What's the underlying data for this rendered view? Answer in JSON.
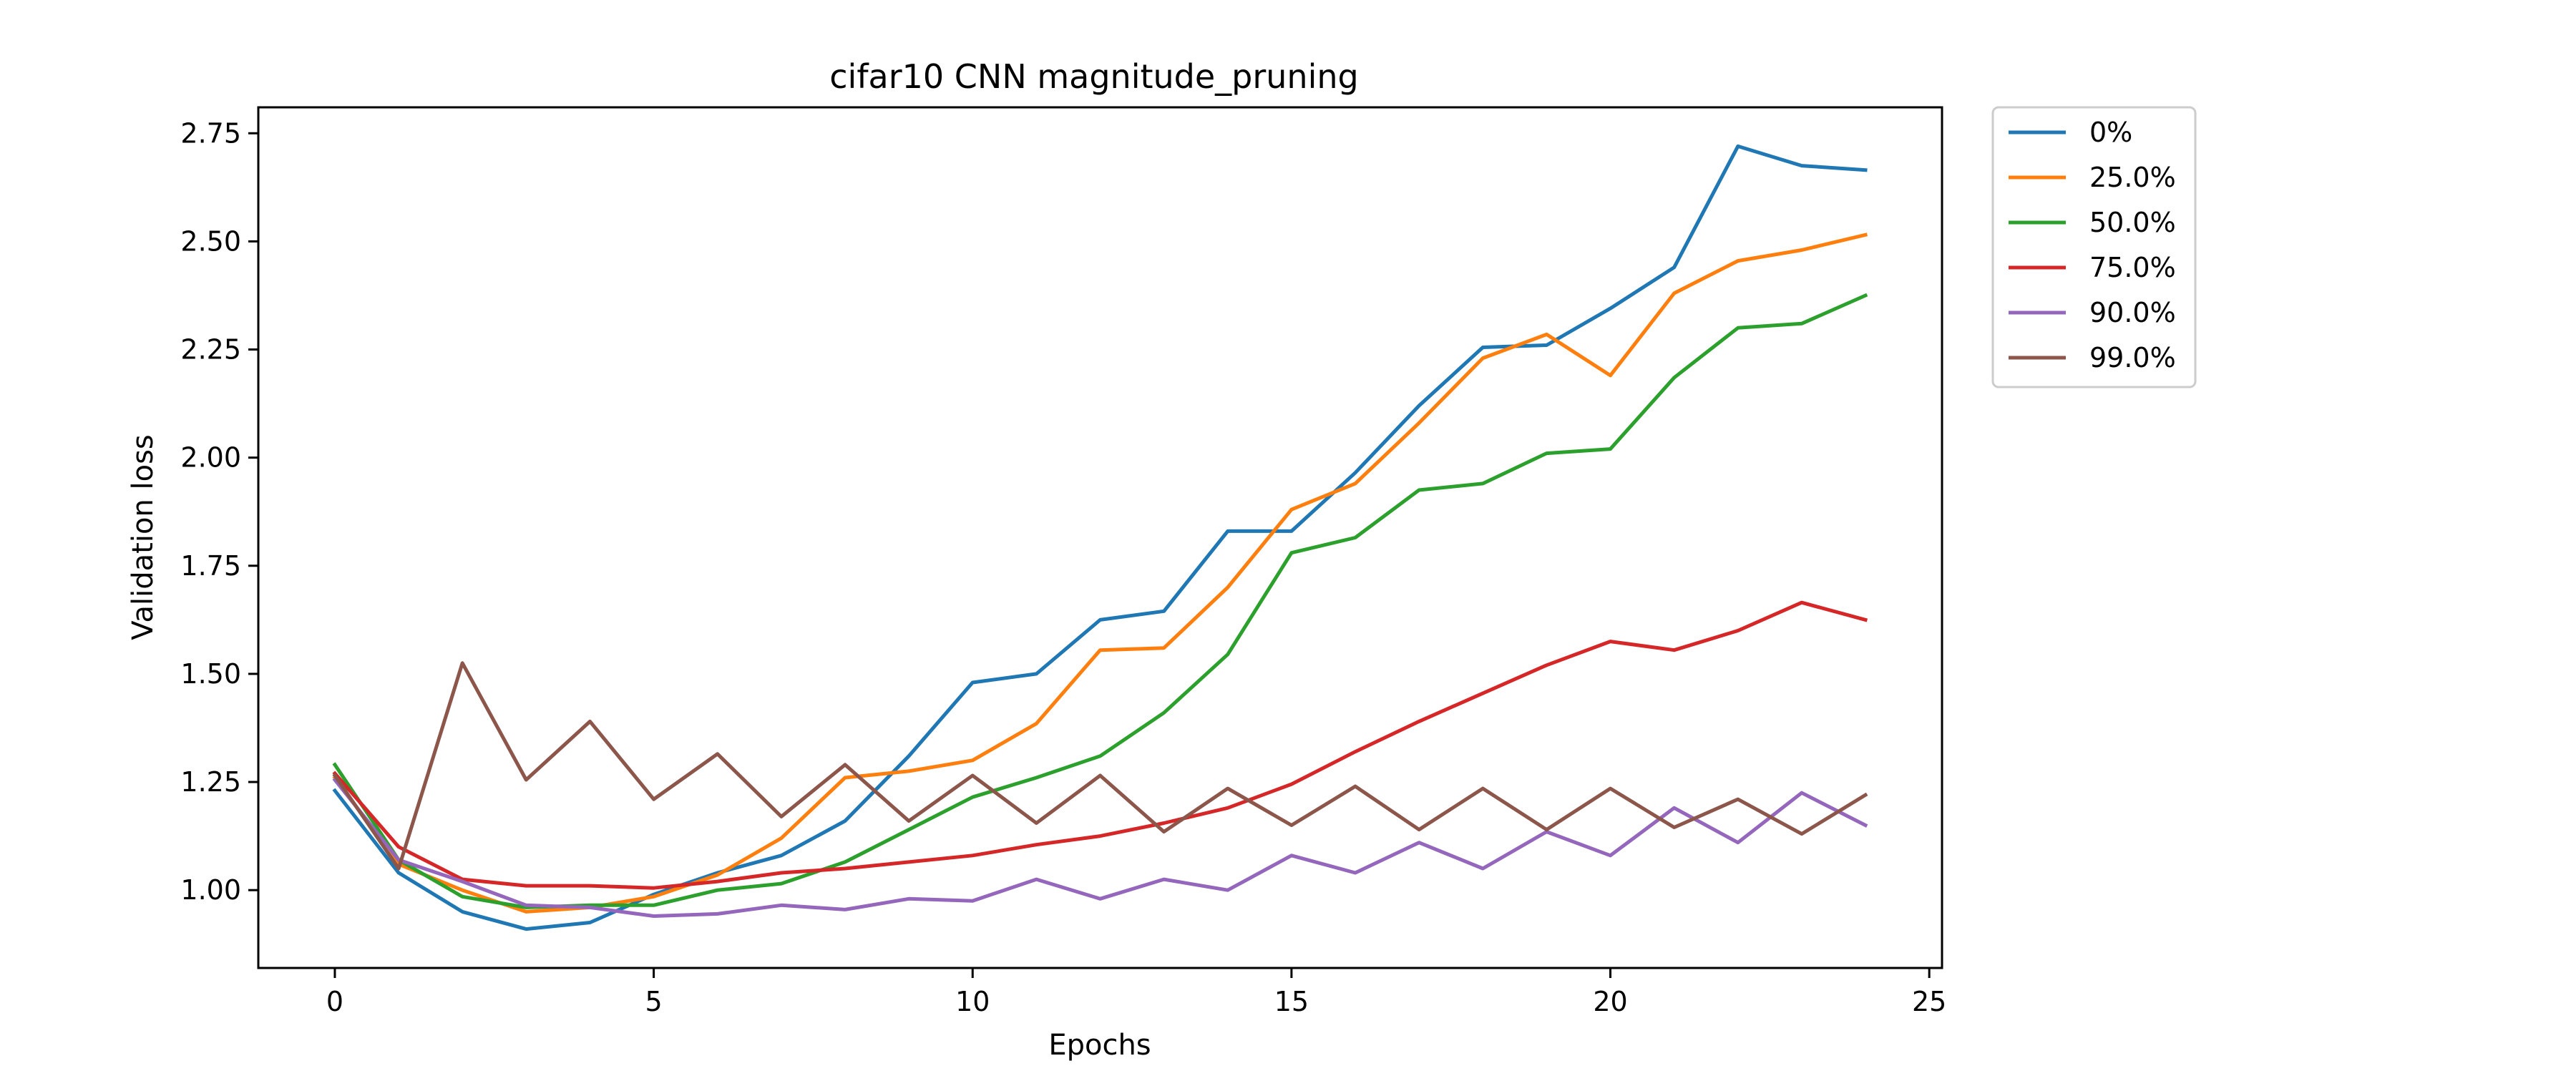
{
  "chart_data": {
    "type": "line",
    "title": "cifar10 CNN magnitude_pruning",
    "xlabel": "Epochs",
    "ylabel": "Validation loss",
    "xlim": [
      -1.2,
      25.2
    ],
    "ylim": [
      0.82,
      2.81
    ],
    "xticks": [
      0,
      5,
      10,
      15,
      20,
      25
    ],
    "xtick_labels": [
      "0",
      "5",
      "10",
      "15",
      "20",
      "25"
    ],
    "yticks": [
      1.0,
      1.25,
      1.5,
      1.75,
      2.0,
      2.25,
      2.5,
      2.75
    ],
    "ytick_labels": [
      "1.00",
      "1.25",
      "1.50",
      "1.75",
      "2.00",
      "2.25",
      "2.50",
      "2.75"
    ],
    "grid": false,
    "legend_position": "outside-top-right",
    "x": [
      0,
      1,
      2,
      3,
      4,
      5,
      6,
      7,
      8,
      9,
      10,
      11,
      12,
      13,
      14,
      15,
      16,
      17,
      18,
      19,
      20,
      21,
      22,
      23,
      24
    ],
    "series": [
      {
        "name": "0%",
        "color": "#1f77b4",
        "values": [
          1.23,
          1.04,
          0.95,
          0.91,
          0.925,
          0.99,
          1.04,
          1.08,
          1.16,
          1.31,
          1.48,
          1.5,
          1.625,
          1.645,
          1.83,
          1.83,
          1.965,
          2.12,
          2.255,
          2.26,
          2.345,
          2.44,
          2.72,
          2.675,
          2.665
        ]
      },
      {
        "name": "25.0%",
        "color": "#ff7f0e",
        "values": [
          1.26,
          1.06,
          1.0,
          0.95,
          0.96,
          0.985,
          1.035,
          1.12,
          1.26,
          1.275,
          1.3,
          1.385,
          1.555,
          1.56,
          1.7,
          1.88,
          1.94,
          2.08,
          2.23,
          2.285,
          2.19,
          2.38,
          2.455,
          2.48,
          2.515
        ]
      },
      {
        "name": "50.0%",
        "color": "#2ca02c",
        "values": [
          1.29,
          1.07,
          0.985,
          0.96,
          0.965,
          0.965,
          1.0,
          1.015,
          1.065,
          1.14,
          1.215,
          1.26,
          1.31,
          1.41,
          1.545,
          1.78,
          1.815,
          1.925,
          1.94,
          2.01,
          2.02,
          2.185,
          2.3,
          2.31,
          2.375
        ]
      },
      {
        "name": "75.0%",
        "color": "#d62728",
        "values": [
          1.27,
          1.1,
          1.025,
          1.01,
          1.01,
          1.005,
          1.02,
          1.04,
          1.05,
          1.065,
          1.08,
          1.105,
          1.125,
          1.155,
          1.19,
          1.245,
          1.32,
          1.39,
          1.455,
          1.52,
          1.575,
          1.555,
          1.6,
          1.665,
          1.625
        ]
      },
      {
        "name": "90.0%",
        "color": "#9467bd",
        "values": [
          1.255,
          1.07,
          1.02,
          0.965,
          0.96,
          0.94,
          0.945,
          0.965,
          0.955,
          0.98,
          0.975,
          1.025,
          0.98,
          1.025,
          1.0,
          1.08,
          1.04,
          1.11,
          1.05,
          1.135,
          1.08,
          1.19,
          1.11,
          1.225,
          1.15
        ]
      },
      {
        "name": "99.0%",
        "color": "#8c564b",
        "values": [
          1.265,
          1.05,
          1.525,
          1.255,
          1.39,
          1.21,
          1.315,
          1.17,
          1.29,
          1.16,
          1.265,
          1.155,
          1.265,
          1.135,
          1.235,
          1.15,
          1.24,
          1.14,
          1.235,
          1.14,
          1.235,
          1.145,
          1.21,
          1.13,
          1.22
        ]
      }
    ]
  }
}
